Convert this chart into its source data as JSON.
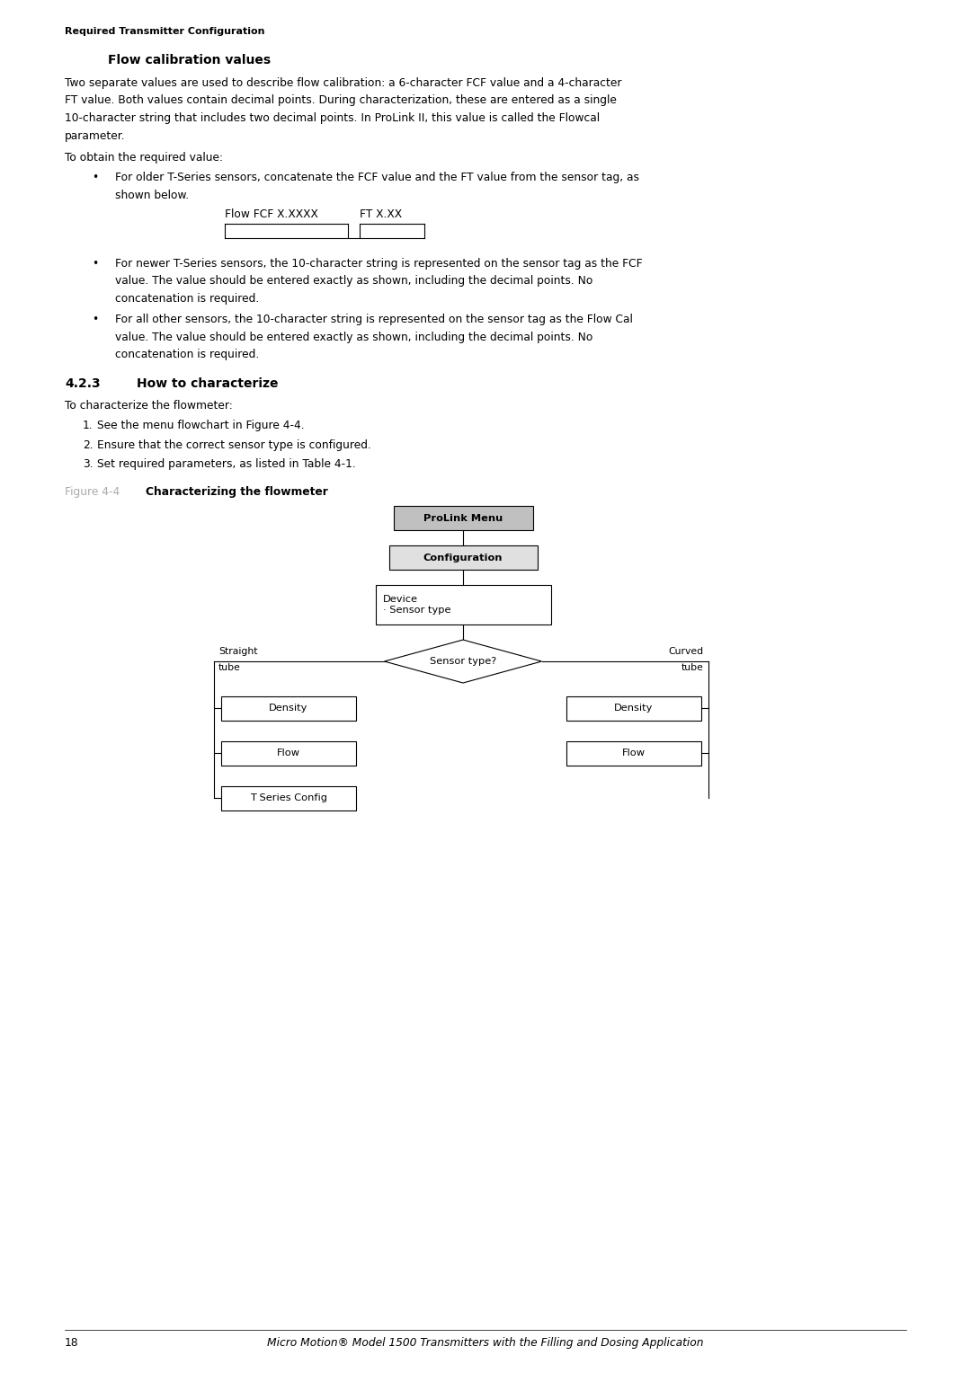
{
  "bg_color": "#ffffff",
  "page_width": 10.8,
  "page_height": 15.28,
  "header_text": "Required Transmitter Configuration",
  "section_title": "Flow calibration values",
  "body_text_1": "Two separate values are used to describe flow calibration: a 6-character FCF value and a 4-character\nFT value. Both values contain decimal points. During characterization, these are entered as a single\n10-character string that includes two decimal points. In ProLink II, this value is called the Flowcal\nparameter.",
  "obtain_text": "To obtain the required value:",
  "bullet1_line1": "For older T-Series sensors, concatenate the FCF value and the FT value from the sensor tag, as",
  "bullet1_line2": "shown below.",
  "bullet2_line1": "For newer T-Series sensors, the 10-character string is represented on the sensor tag as the FCF",
  "bullet2_line2": "value. The value should be entered exactly as shown, including the decimal points. No",
  "bullet2_line3": "concatenation is required.",
  "bullet3_line1": "For all other sensors, the 10-character string is represented on the sensor tag as the Flow Cal",
  "bullet3_line2": "value. The value should be entered exactly as shown, including the decimal points. No",
  "bullet3_line3": "concatenation is required.",
  "section_423": "4.2.3",
  "section_423_title": "How to characterize",
  "characterize_intro": "To characterize the flowmeter:",
  "step1": "See the menu flowchart in Figure 4-4.",
  "step2": "Ensure that the correct sensor type is configured.",
  "step3": "Set required parameters, as listed in Table 4-1.",
  "figure_label": "Figure 4-4",
  "figure_title": "Characterizing the flowmeter",
  "footer_page": "18",
  "fcf_label": "Flow FCF X.XXXX",
  "ft_label": "FT X.XX",
  "header_color": "#000000",
  "section_title_color": "#000000",
  "body_color": "#000000",
  "figure_label_color": "#aaaaaa",
  "figure_title_color": "#000000"
}
